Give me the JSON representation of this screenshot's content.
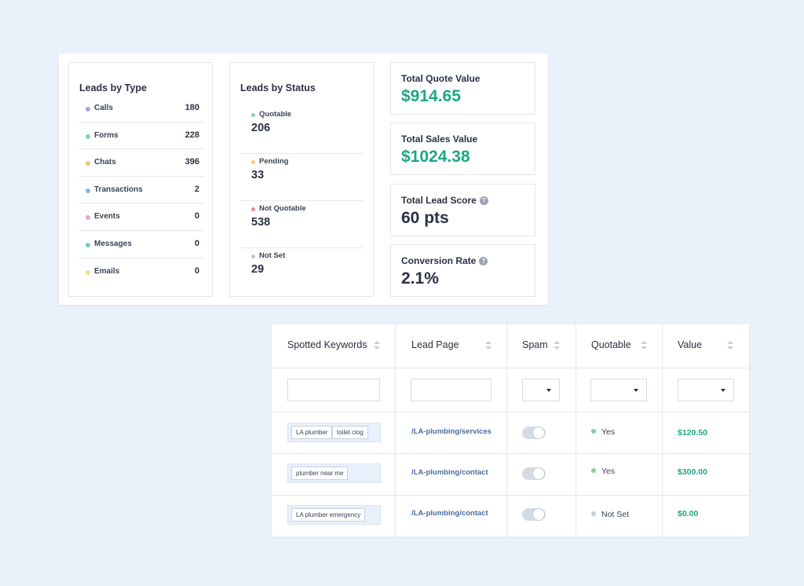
{
  "colors": {
    "green": "#1ca882",
    "dark": "#2a3145",
    "link": "#4a6d9f"
  },
  "leads_by_type": {
    "title": "Leads by Type",
    "items": [
      {
        "label": "Calls",
        "value": "180",
        "color": "#a8a3d2"
      },
      {
        "label": "Forms",
        "value": "228",
        "color": "#7fd1ae"
      },
      {
        "label": "Chats",
        "value": "396",
        "color": "#f5c27a"
      },
      {
        "label": "Transactions",
        "value": "2",
        "color": "#8fb3e0"
      },
      {
        "label": "Events",
        "value": "0",
        "color": "#e5a3d6"
      },
      {
        "label": "Messages",
        "value": "0",
        "color": "#6fcfc0"
      },
      {
        "label": "Emails",
        "value": "0",
        "color": "#f2df87"
      }
    ]
  },
  "leads_by_status": {
    "title": "Leads by Status",
    "items": [
      {
        "label": "Quotable",
        "value": "206",
        "color": "#7fd49a"
      },
      {
        "label": "Pending",
        "value": "33",
        "color": "#f4cf73"
      },
      {
        "label": "Not Quotable",
        "value": "538",
        "color": "#ec8a8a"
      },
      {
        "label": "Not Set",
        "value": "29",
        "color": "#c2c7d0"
      }
    ]
  },
  "metrics": [
    {
      "title": "Total Quote Value",
      "value": "$914.65",
      "style": "green",
      "help": false
    },
    {
      "title": "Total Sales Value",
      "value": "$1024.38",
      "style": "green",
      "help": false
    },
    {
      "title": "Total Lead Score",
      "value": "60 pts",
      "style": "dark",
      "help": true
    },
    {
      "title": "Conversion Rate",
      "value": "2.1%",
      "style": "dark",
      "help": true
    }
  ],
  "table": {
    "headers": [
      "Spotted Keywords",
      "Lead Page",
      "Spam",
      "Quotable",
      "Value"
    ],
    "rows": [
      {
        "keywords": [
          "LA plumber",
          "toilet clog"
        ],
        "page": "/LA-plumbing/services",
        "quotable": "Yes",
        "quotable_color": "#7fd49a",
        "value": "$120.50"
      },
      {
        "keywords": [
          "plumber near me"
        ],
        "page": "/LA-plumbing/contact",
        "quotable": "Yes",
        "quotable_color": "#7fd49a",
        "value": "$300.00"
      },
      {
        "keywords": [
          "LA plumber emergency"
        ],
        "page": "/LA-plumbing/contact",
        "quotable": "Not Set",
        "quotable_color": "#c8ccd4",
        "value": "$0.00"
      }
    ]
  }
}
